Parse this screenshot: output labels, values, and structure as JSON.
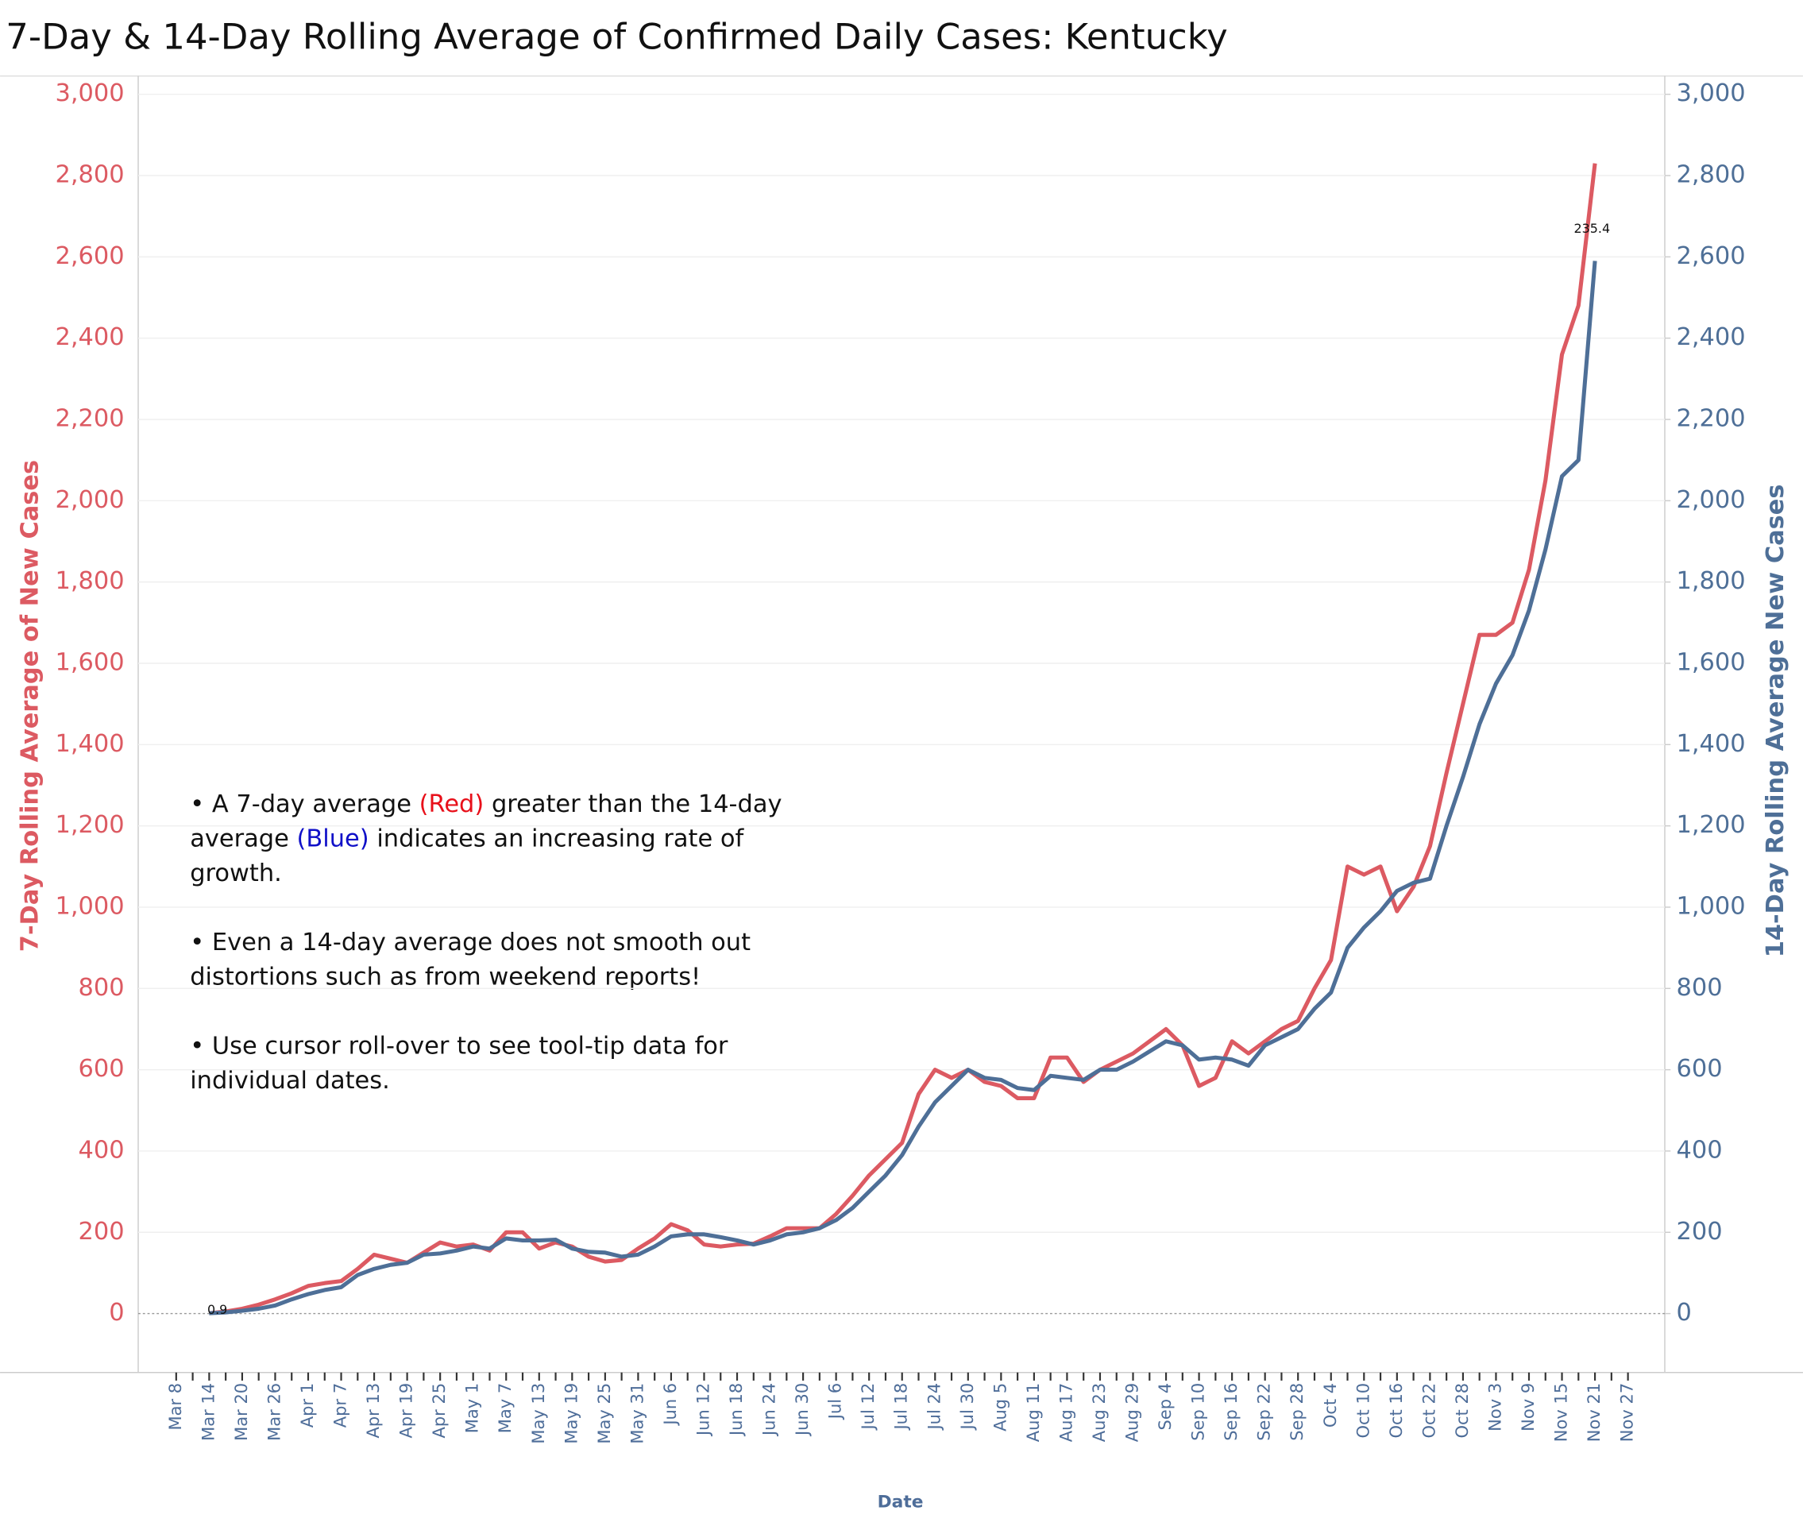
{
  "chart_data": {
    "type": "line",
    "title": "7-Day & 14-Day Rolling Average of Confirmed Daily  Cases:  Kentucky",
    "y_label": "7-Day Rolling  Average of New Cases",
    "y2_label": "14-Day Rolling Average New Cases",
    "x_label": "Date",
    "x": [
      "Mar 8",
      null,
      "Mar 14",
      null,
      "Mar 20",
      null,
      "Mar 26",
      null,
      "Apr 1",
      null,
      "Apr 7",
      null,
      "Apr 13",
      null,
      "Apr 19",
      null,
      "Apr 25",
      null,
      "May 1",
      null,
      "May 7",
      null,
      "May 13",
      null,
      "May 19",
      null,
      "May 25",
      null,
      "May 31",
      null,
      "Jun 6",
      null,
      "Jun 12",
      null,
      "Jun 18",
      null,
      "Jun 24",
      null,
      "Jun 30",
      null,
      "Jul 6",
      null,
      "Jul 12",
      null,
      "Jul 18",
      null,
      "Jul 24",
      null,
      "Jul 30",
      null,
      "Aug 5",
      null,
      "Aug 11",
      null,
      "Aug 17",
      null,
      "Aug 23",
      null,
      "Aug 29",
      null,
      "Sep 4",
      null,
      "Sep 10",
      null,
      "Sep 16",
      null,
      "Sep 22",
      null,
      "Sep 28",
      null,
      "Oct 4",
      null,
      "Oct 10",
      null,
      "Oct 16",
      null,
      "Oct 22",
      null,
      "Oct 28",
      null,
      "Nov 3",
      null,
      "Nov 9",
      null,
      "Nov 15",
      null,
      "Nov 21",
      null,
      "Nov 27"
    ],
    "series": [
      {
        "name": "7-Day Rolling Average",
        "color": "#dc5a62",
        "axis": "y",
        "values": [
          null,
          null,
          0.9,
          5,
          12,
          22,
          35,
          50,
          68,
          75,
          80,
          110,
          145,
          135,
          125,
          150,
          175,
          165,
          170,
          155,
          200,
          200,
          160,
          175,
          165,
          140,
          128,
          132,
          160,
          185,
          220,
          205,
          170,
          165,
          170,
          172,
          190,
          210,
          210,
          210,
          245,
          290,
          340,
          380,
          420,
          540,
          600,
          580,
          600,
          570,
          560,
          530,
          530,
          630,
          630,
          570,
          600,
          620,
          640,
          670,
          700,
          660,
          560,
          580,
          670,
          640,
          670,
          700,
          720,
          800,
          870,
          1100,
          1080,
          1100,
          990,
          1050,
          1150,
          1330,
          1500,
          1670,
          1670,
          1700,
          1830,
          2050,
          2360,
          2480,
          2830,
          null,
          null
        ]
      },
      {
        "name": "14-Day Rolling Average",
        "color": "#4e6f97",
        "axis": "y2",
        "values": [
          null,
          null,
          0.9,
          3,
          7,
          12,
          20,
          35,
          48,
          58,
          65,
          95,
          110,
          120,
          125,
          145,
          148,
          155,
          165,
          160,
          185,
          180,
          180,
          182,
          160,
          152,
          150,
          140,
          145,
          165,
          190,
          195,
          195,
          188,
          180,
          170,
          180,
          195,
          200,
          210,
          230,
          260,
          300,
          340,
          390,
          460,
          520,
          560,
          600,
          580,
          575,
          555,
          550,
          585,
          580,
          575,
          600,
          600,
          620,
          645,
          670,
          660,
          625,
          630,
          625,
          610,
          660,
          680,
          700,
          750,
          790,
          900,
          950,
          990,
          1040,
          1060,
          1070,
          1200,
          1320,
          1450,
          1550,
          1620,
          1730,
          1880,
          2060,
          2100,
          2590,
          null,
          null
        ]
      }
    ],
    "ylim": [
      -145,
      3045
    ],
    "yticks": [
      0,
      200,
      400,
      600,
      800,
      {
        "value": 1000,
        "label": "1,000"
      },
      {
        "value": 1200,
        "label": "1,200"
      },
      {
        "value": 1400,
        "label": "1,400"
      },
      {
        "value": 1600,
        "label": "1,600"
      },
      {
        "value": 1800,
        "label": "1,800"
      },
      {
        "value": 2000,
        "label": "2,000"
      },
      {
        "value": 2200,
        "label": "2,200"
      },
      {
        "value": 2400,
        "label": "2,400"
      },
      {
        "value": 2600,
        "label": "2,600"
      },
      {
        "value": 2800,
        "label": "2,800"
      },
      {
        "value": 3000,
        "label": "3,000"
      }
    ],
    "y2lim": [
      -145,
      3045
    ],
    "y2ticks": [
      0,
      200,
      400,
      600,
      800,
      {
        "value": 1000,
        "label": "1,000"
      },
      {
        "value": 1200,
        "label": "1,200"
      },
      {
        "value": 1400,
        "label": "1,400"
      },
      {
        "value": 1600,
        "label": "1,600"
      },
      {
        "value": 1800,
        "label": "1,800"
      },
      {
        "value": 2000,
        "label": "2,000"
      },
      {
        "value": 2200,
        "label": "2,200"
      },
      {
        "value": 2400,
        "label": "2,400"
      },
      {
        "value": 2600,
        "label": "2,600"
      },
      {
        "value": 2800,
        "label": "2,800"
      },
      {
        "value": 3000,
        "label": "3,000"
      }
    ],
    "grid": true,
    "annotations": [
      "0.9",
      "235.4"
    ],
    "notes": [
      [
        {
          "text": "• A 7-day average "
        },
        {
          "text": "(Red)",
          "color": "#e8101a"
        },
        {
          "text": " greater than the 14-day average "
        },
        {
          "text": "(Blue)",
          "color": "#1010c8"
        },
        {
          "text": " indicates an increasing rate of growth."
        }
      ],
      [
        {
          "text": "• Even a 14-day average does not smooth out distortions such as from weekend reports!"
        }
      ],
      [
        {
          "text": "• Use cursor roll-over to see tool-tip data for individual dates."
        }
      ]
    ]
  }
}
